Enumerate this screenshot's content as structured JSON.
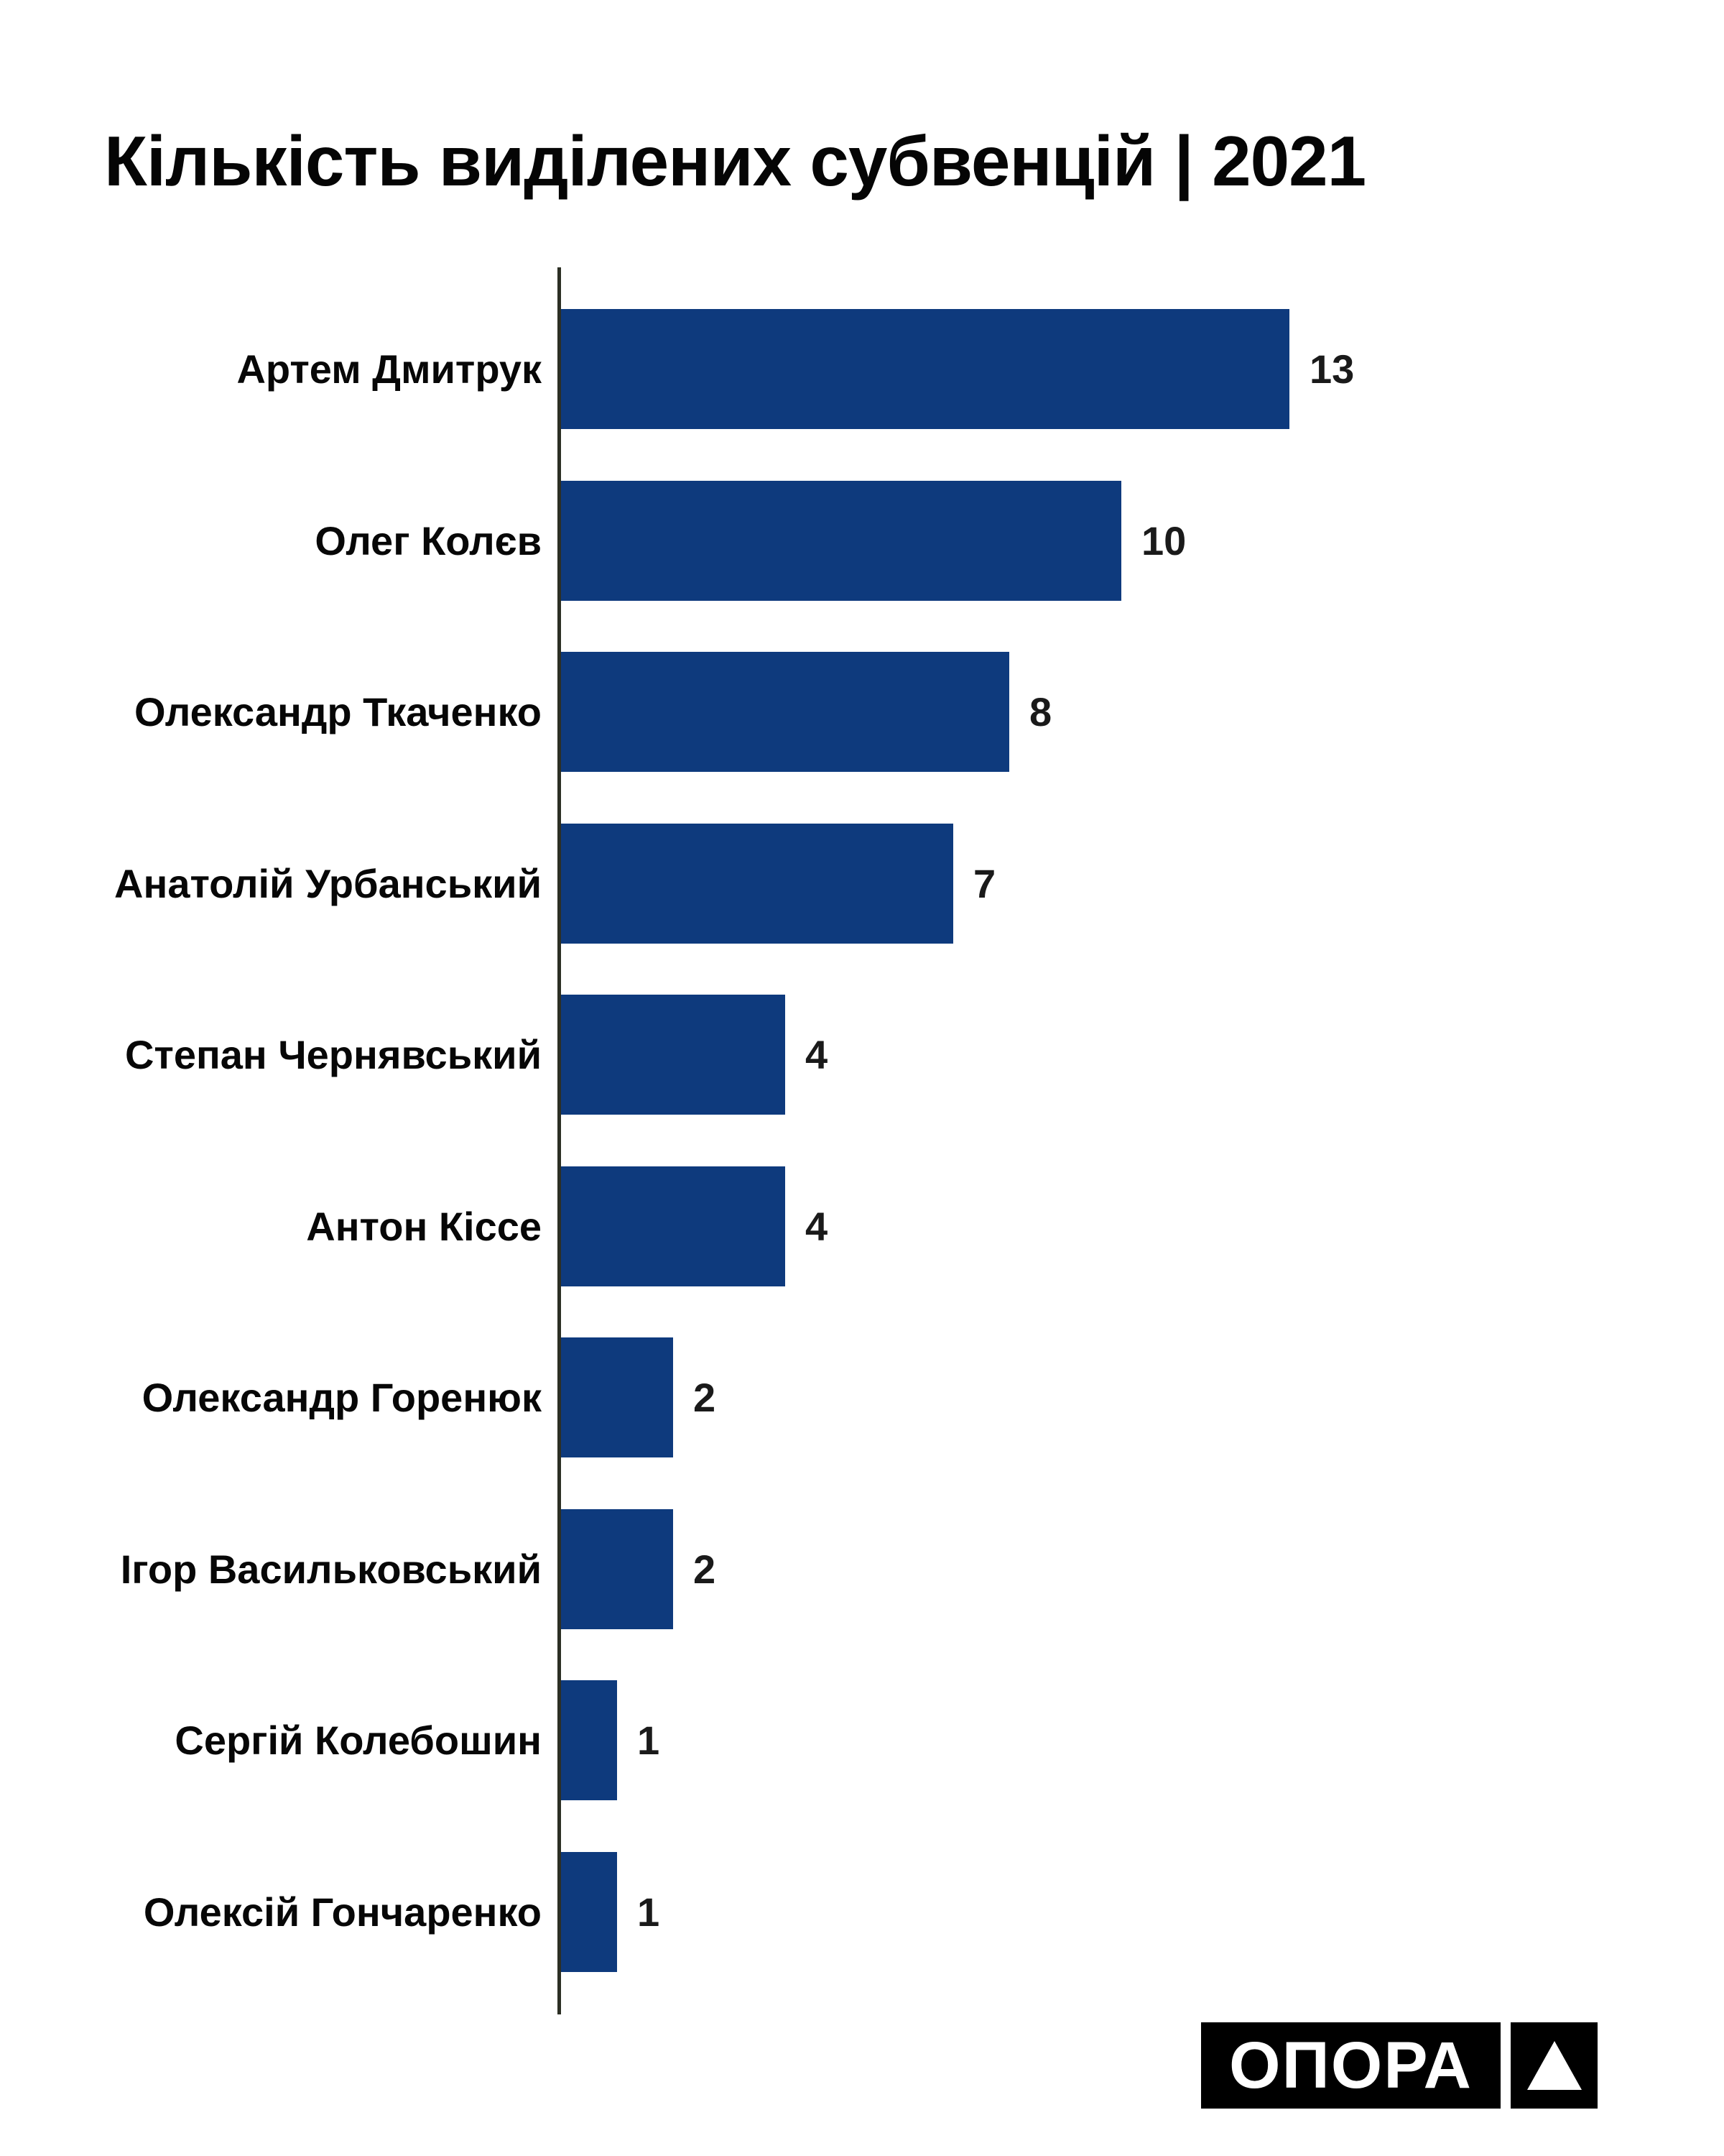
{
  "title": "Кількість виділених субвенцій | 2021",
  "chart_data": {
    "type": "bar",
    "orientation": "horizontal",
    "title": "Кількість виділених субвенцій | 2021",
    "categories": [
      "Артем Дмитрук",
      "Олег Колєв",
      "Олександр Ткаченко",
      "Анатолій Урбанський",
      "Степан Чернявський",
      "Антон Кіссе",
      "Олександр Горенюк",
      "Ігор Васильковський",
      "Сергій Колебошин",
      "Олексій Гончаренко"
    ],
    "values": [
      13,
      10,
      8,
      7,
      4,
      4,
      2,
      2,
      1,
      1
    ],
    "xlabel": "",
    "ylabel": "",
    "xlim": [
      0,
      13
    ],
    "grid": false,
    "legend": false,
    "value_labels_shown": true,
    "bar_color": "#0e3a7d",
    "axis_color": "#2c2f24",
    "category_label_color": "#070707",
    "value_label_color": "#1a1a1a"
  },
  "logo": {
    "text": "ОПОРА",
    "symbol": "triangle-icon",
    "background_color": "#000000",
    "foreground_color": "#ffffff"
  }
}
